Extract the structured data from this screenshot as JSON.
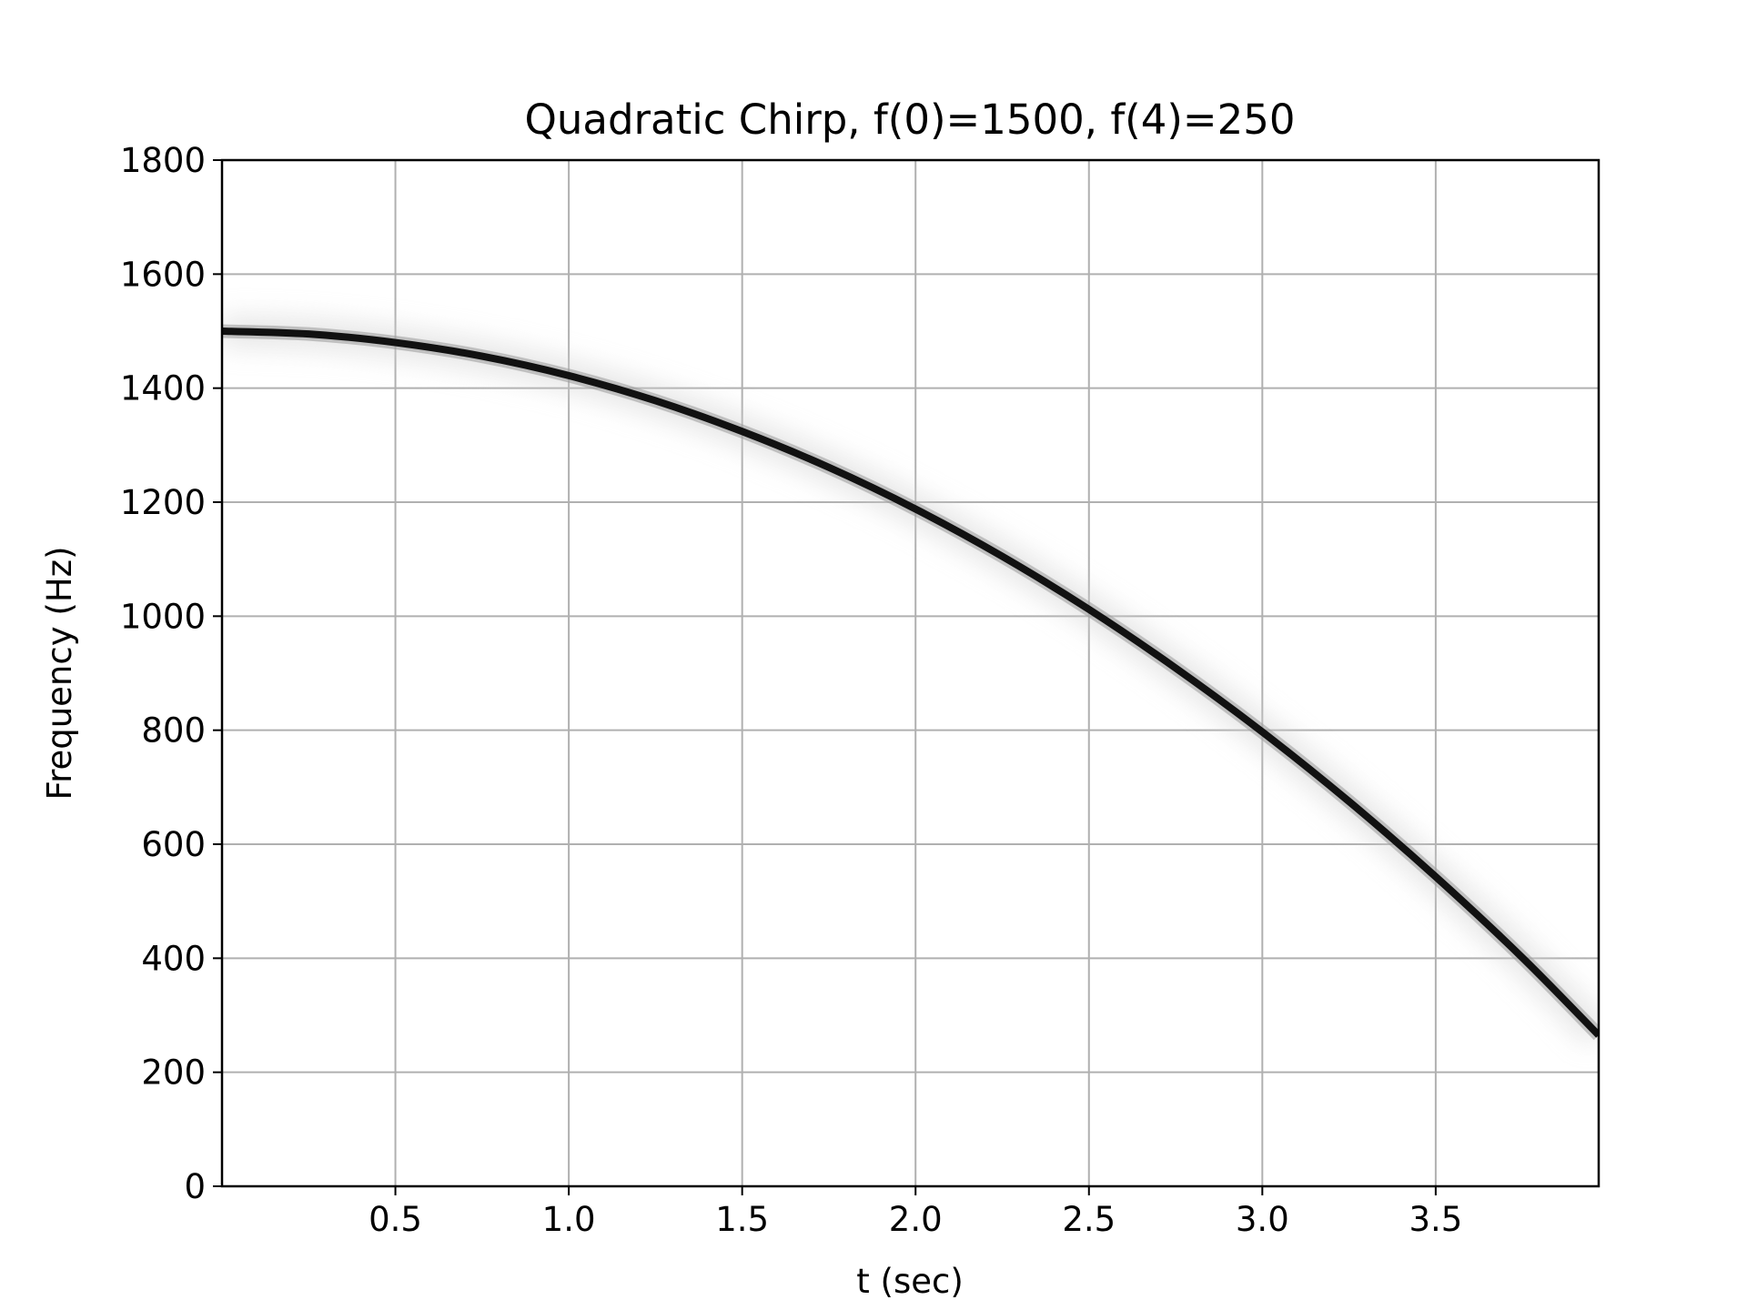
{
  "chart_data": {
    "type": "heatmap",
    "title": "Quadratic Chirp, f(0)=1500, f(4)=250",
    "xlabel": "t (sec)",
    "ylabel": "Frequency (Hz)",
    "xlim": [
      0.0,
      3.97
    ],
    "ylim": [
      0,
      1800
    ],
    "xticks": [
      0.5,
      1.0,
      1.5,
      2.0,
      2.5,
      3.0,
      3.5
    ],
    "xtick_labels": [
      "0.5",
      "1.0",
      "1.5",
      "2.0",
      "2.5",
      "3.0",
      "3.5"
    ],
    "yticks": [
      0,
      200,
      400,
      600,
      800,
      1000,
      1200,
      1400,
      1600,
      1800
    ],
    "ytick_labels": [
      "0",
      "200",
      "400",
      "600",
      "800",
      "1000",
      "1200",
      "1400",
      "1600",
      "1800"
    ],
    "grid": true,
    "colormap": "gray_r",
    "ridge": {
      "t": [
        0.0,
        0.25,
        0.5,
        0.75,
        1.0,
        1.25,
        1.5,
        1.75,
        2.0,
        2.25,
        2.5,
        2.75,
        3.0,
        3.25,
        3.5,
        3.75,
        3.97
      ],
      "f": [
        1500,
        1495,
        1480,
        1456,
        1422,
        1378,
        1324,
        1261,
        1188,
        1105,
        1012,
        909,
        797,
        675,
        543,
        401,
        265
      ]
    },
    "colors": {
      "ridge": "#111111",
      "grid": "#b0b0b0",
      "axes": "#000000",
      "background": "#ffffff"
    }
  }
}
